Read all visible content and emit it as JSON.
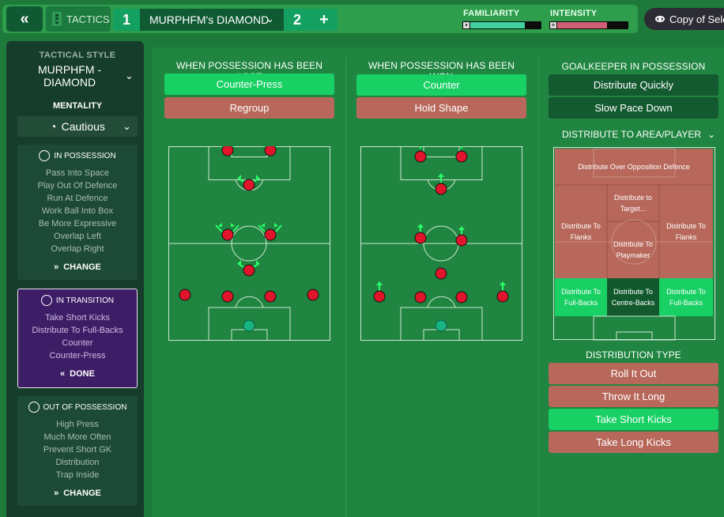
{
  "topbar": {
    "back_icon": "double-chevron-left-icon",
    "tactics_label": "TACTICS",
    "slot1_number": "1",
    "tactic_name": "MURPHFM's DIAMOND",
    "slot2_number": "2",
    "add_label": "+",
    "familiarity_label": "FAMILIARITY",
    "familiarity_level": 0.78,
    "intensity_label": "INTENSITY",
    "intensity_level": 0.72,
    "copy_label": "Copy of Sele"
  },
  "sidebar": {
    "tactical_style_title": "TACTICAL STYLE",
    "tactical_style_name": "MURPHFM - DIAMOND",
    "mentality_label": "MENTALITY",
    "mentality_value": "Cautious",
    "in_possession": {
      "title": "IN POSSESSION",
      "items": [
        "Pass Into Space",
        "Play Out Of Defence",
        "Run At Defence",
        "Work Ball Into Box",
        "Be More Expressive",
        "Overlap Left",
        "Overlap Right"
      ],
      "action": "CHANGE"
    },
    "in_transition": {
      "title": "IN TRANSITION",
      "items": [
        "Take Short Kicks",
        "Distribute To Full-Backs",
        "Counter",
        "Counter-Press"
      ],
      "action": "DONE"
    },
    "out_of_possession": {
      "title": "OUT OF POSSESSION",
      "items": [
        "High Press",
        "Much More Often",
        "Prevent Short GK",
        "Distribution",
        "Trap Inside"
      ],
      "action": "CHANGE"
    }
  },
  "lost": {
    "title": "WHEN POSSESSION HAS BEEN LOST",
    "options": [
      "Counter-Press",
      "Regroup"
    ]
  },
  "won": {
    "title": "WHEN POSSESSION HAS BEEN WON",
    "options": [
      "Counter",
      "Hold Shape"
    ]
  },
  "gk": {
    "title": "GOALKEEPER IN POSSESSION",
    "options": [
      "Distribute Quickly",
      "Slow Pace Down"
    ],
    "distribute_label": "DISTRIBUTE TO AREA/PLAYER",
    "zones": {
      "opposition_defence": "Distribute Over Opposition Defence",
      "target": "Distribute to Target...",
      "left_flank": "Distribute To Flanks",
      "right_flank": "Distribute To Flanks",
      "playmaker": "Distribute To Playmaker",
      "left_fb": "Distribute To Full-Backs",
      "centre_backs": "Distribute To Centre-Backs",
      "right_fb": "Distribute To Full-Backs"
    },
    "distribution_type_label": "DISTRIBUTION TYPE",
    "distribution_types": [
      "Roll It Out",
      "Throw It Long",
      "Take Short Kicks",
      "Take Long Kicks"
    ]
  },
  "colors": {
    "selected": "#19d064",
    "unselected": "#b8685b",
    "player": "#e0142a",
    "goalkeeper": "#17b383",
    "arrow": "#2bff6a"
  }
}
